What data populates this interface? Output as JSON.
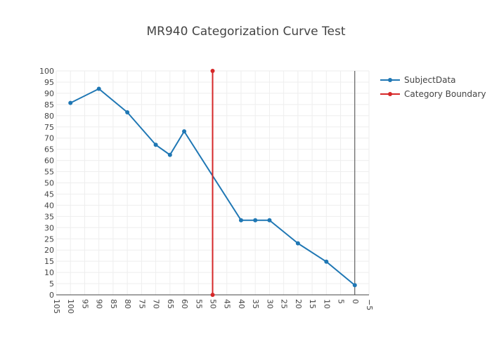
{
  "chart_data": {
    "type": "line",
    "title": "MR940 Categorization Curve Test",
    "xlabel": "",
    "ylabel": "",
    "xlim": [
      105,
      -5
    ],
    "ylim": [
      0,
      100
    ],
    "x_reversed": true,
    "x_ticks": [
      "105",
      "100",
      "95",
      "90",
      "85",
      "80",
      "75",
      "70",
      "65",
      "60",
      "55",
      "50",
      "45",
      "40",
      "35",
      "30",
      "25",
      "20",
      "15",
      "10",
      "5",
      "0",
      "−5"
    ],
    "y_ticks": [
      "0",
      "5",
      "10",
      "15",
      "20",
      "25",
      "30",
      "35",
      "40",
      "45",
      "50",
      "55",
      "60",
      "65",
      "70",
      "75",
      "80",
      "85",
      "90",
      "95",
      "100"
    ],
    "grid": true,
    "legend_position": "top-right",
    "series": [
      {
        "name": "SubjectData",
        "color": "#1f77b4",
        "x": [
          100,
          90,
          80,
          70,
          65,
          60,
          40,
          35,
          30,
          20,
          10,
          0
        ],
        "y": [
          85.7,
          92,
          81.5,
          67,
          62.5,
          73,
          33.3,
          33.3,
          33.3,
          23,
          14.8,
          4.3
        ]
      },
      {
        "name": "Category Boundary",
        "color": "#d62728",
        "x": [
          50,
          50
        ],
        "y": [
          100,
          0
        ]
      }
    ]
  }
}
